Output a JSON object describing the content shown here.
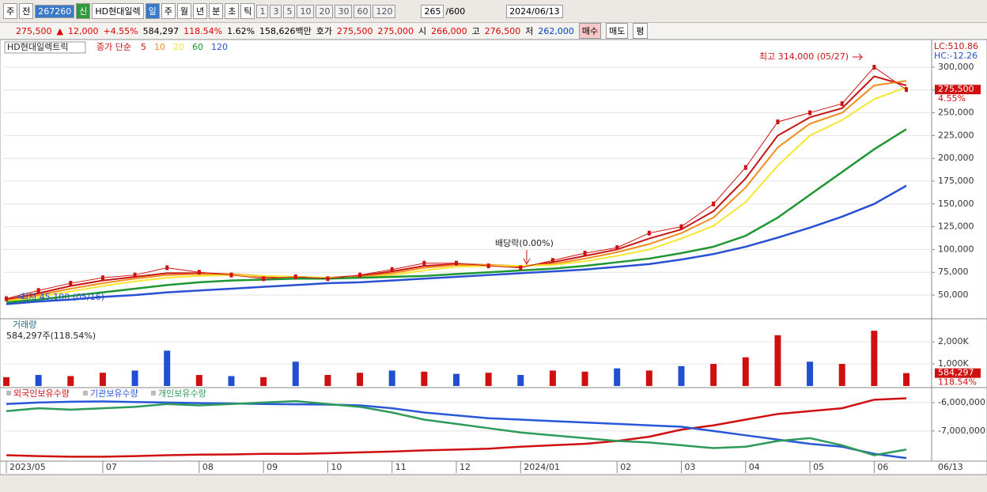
{
  "toolbar": {
    "mode": "주",
    "prev": "전",
    "code": "267260",
    "badge": "신",
    "name": "HD현대일렉",
    "periods": [
      "일",
      "주",
      "월",
      "년",
      "분",
      "초",
      "틱"
    ],
    "intervals": [
      "1",
      "3",
      "5",
      "10",
      "20",
      "30",
      "60",
      "120"
    ],
    "count": "265",
    "max": "/600",
    "date": "2024/06/13"
  },
  "info": {
    "price": "275,500",
    "arrow": "▲",
    "change": "12,000",
    "pct": "+4.55%",
    "volume": "584,297",
    "vol_ratio": "118.54%",
    "turnover": "1.62%",
    "amount": "158,626백만",
    "quote_label": "호가",
    "ask": "275,500",
    "bid": "275,000",
    "open_label": "시",
    "open": "266,000",
    "high_label": "고",
    "high": "276,500",
    "low_label": "저",
    "low": "262,000",
    "buy": "매수",
    "sell": "매도",
    "avg": "평"
  },
  "chart_data": [
    {
      "type": "line",
      "title": "HD현대일렉트릭",
      "ma_label": "종가 단순",
      "categories": [
        "2023/05",
        null,
        null,
        "07",
        null,
        null,
        "08",
        null,
        "09",
        null,
        "10",
        null,
        "11",
        null,
        "12",
        null,
        "2024/01",
        null,
        null,
        "02",
        null,
        "03",
        null,
        "04",
        null,
        "05",
        null,
        "06",
        null
      ],
      "price": {
        "color": "#d01010",
        "values": [
          46000,
          55000,
          63000,
          69000,
          72000,
          80000,
          75000,
          72000,
          68000,
          70000,
          68000,
          72000,
          78000,
          85000,
          85000,
          82000,
          80000,
          88000,
          96000,
          102000,
          118000,
          125000,
          150000,
          190000,
          240000,
          250000,
          260000,
          300000,
          275500
        ]
      },
      "series": [
        {
          "name": "5",
          "color": "#c81414",
          "values": [
            45000,
            52000,
            60000,
            66000,
            70000,
            74000,
            74000,
            73000,
            70000,
            70000,
            69000,
            71000,
            76000,
            82000,
            84000,
            83000,
            81000,
            86000,
            93000,
            100000,
            112000,
            122000,
            142000,
            178000,
            225000,
            245000,
            255000,
            290000,
            280000
          ]
        },
        {
          "name": "10",
          "color": "#f08c1e",
          "values": [
            44000,
            50000,
            57000,
            63000,
            68000,
            72000,
            73000,
            73000,
            71000,
            70000,
            69000,
            70000,
            74000,
            80000,
            83000,
            83000,
            82000,
            84000,
            90000,
            97000,
            106000,
            118000,
            135000,
            168000,
            212000,
            238000,
            250000,
            280000,
            285000
          ]
        },
        {
          "name": "20",
          "color": "#f5e632",
          "values": [
            43000,
            48000,
            54000,
            60000,
            65000,
            69000,
            71000,
            72000,
            71000,
            70000,
            69000,
            69000,
            72000,
            77000,
            81000,
            82000,
            82000,
            83000,
            87000,
            93000,
            100000,
            112000,
            126000,
            152000,
            192000,
            225000,
            242000,
            265000,
            278000
          ]
        },
        {
          "name": "60",
          "color": "#1e9632",
          "values": [
            42000,
            45000,
            49000,
            53000,
            57000,
            61000,
            64000,
            66000,
            67000,
            68000,
            68000,
            69000,
            70000,
            71000,
            73000,
            75000,
            77000,
            79000,
            82000,
            86000,
            90000,
            96000,
            103000,
            115000,
            135000,
            160000,
            185000,
            210000,
            232000
          ]
        },
        {
          "name": "120",
          "color": "#2850d2",
          "values": [
            40000,
            43000,
            45000,
            48000,
            50000,
            53000,
            55000,
            57000,
            59000,
            61000,
            63000,
            64000,
            66000,
            68000,
            70000,
            72000,
            74000,
            76000,
            78000,
            81000,
            84000,
            89000,
            95000,
            103000,
            113000,
            124000,
            136000,
            150000,
            170000
          ]
        }
      ],
      "ylim": [
        24000,
        326000
      ],
      "yticks": [
        {
          "value": 50000,
          "label": "50,000"
        },
        {
          "value": 75000,
          "label": "75,000"
        },
        {
          "value": 100000,
          "label": "100,000"
        },
        {
          "value": 125000,
          "label": "125,000"
        },
        {
          "value": 150000,
          "label": "150,000"
        },
        {
          "value": 175000,
          "label": "175,000"
        },
        {
          "value": 200000,
          "label": "200,000"
        },
        {
          "value": 225000,
          "label": "225,000"
        },
        {
          "value": 250000,
          "label": "250,000"
        },
        {
          "value": 275000,
          "label": "275,000"
        },
        {
          "value": 300000,
          "label": "300,000"
        }
      ],
      "grid": true,
      "annotations": [
        "최고 314,000 (05/27)",
        "배당락(0.00%)",
        "최저 45,100 (05/16)"
      ],
      "lc": "LC:510.86",
      "hc": "HC:-12.26",
      "last_label": "275,500",
      "last_pct": "4.55%",
      "last_date": "06/13"
    },
    {
      "type": "bar",
      "title": "거래량",
      "subtitle": "584,297주(118.54%)",
      "values": [
        400000,
        500000,
        450000,
        600000,
        700000,
        1600000,
        500000,
        450000,
        400000,
        1100000,
        500000,
        600000,
        700000,
        650000,
        550000,
        600000,
        500000,
        700000,
        650000,
        800000,
        700000,
        900000,
        1000000,
        1300000,
        2300000,
        1100000,
        1000000,
        2500000,
        584297
      ],
      "colors": [
        "#d01010",
        "#2050d0",
        "#d01010",
        "#d01010",
        "#2050d0",
        "#2050d0",
        "#d01010",
        "#2050d0",
        "#d01010",
        "#2050d0",
        "#d01010",
        "#d01010",
        "#2050d0",
        "#d01010",
        "#2050d0",
        "#d01010",
        "#2050d0",
        "#d01010",
        "#d01010",
        "#2050d0",
        "#d01010",
        "#2050d0",
        "#d01010",
        "#d01010",
        "#d01010",
        "#2050d0",
        "#d01010",
        "#d01010",
        "#d01010"
      ],
      "ylim": [
        0,
        2900000
      ],
      "yticks": [
        {
          "value": 1000000,
          "label": "1,000K"
        },
        {
          "value": 2000000,
          "label": "2,000K"
        }
      ],
      "grid": true,
      "last_label": "584,297",
      "last_pct": "118.54%"
    },
    {
      "type": "line",
      "series": [
        {
          "name": "외국인보유수량",
          "color": "#d01010",
          "values": [
            -7850000,
            -7880000,
            -7900000,
            -7900000,
            -7880000,
            -7850000,
            -7830000,
            -7820000,
            -7800000,
            -7800000,
            -7780000,
            -7750000,
            -7720000,
            -7680000,
            -7650000,
            -7620000,
            -7550000,
            -7500000,
            -7450000,
            -7350000,
            -7200000,
            -6950000,
            -6800000,
            -6600000,
            -6400000,
            -6300000,
            -6200000,
            -5900000,
            -5850000
          ]
        },
        {
          "name": "기관보유수량",
          "color": "#2858d8",
          "values": [
            -6050000,
            -6000000,
            -5970000,
            -5960000,
            -5980000,
            -6000000,
            -6020000,
            -6030000,
            -6050000,
            -6060000,
            -6070000,
            -6100000,
            -6200000,
            -6350000,
            -6450000,
            -6550000,
            -6600000,
            -6650000,
            -6700000,
            -6750000,
            -6800000,
            -6850000,
            -7000000,
            -7150000,
            -7300000,
            -7450000,
            -7550000,
            -7800000,
            -7950000
          ]
        },
        {
          "name": "개인보유수량",
          "color": "#2e9a5a",
          "values": [
            -6300000,
            -6200000,
            -6250000,
            -6200000,
            -6150000,
            -6050000,
            -6100000,
            -6050000,
            -6000000,
            -5950000,
            -6050000,
            -6150000,
            -6350000,
            -6600000,
            -6750000,
            -6900000,
            -7050000,
            -7150000,
            -7250000,
            -7350000,
            -7400000,
            -7500000,
            -7600000,
            -7550000,
            -7350000,
            -7250000,
            -7500000,
            -7850000,
            -7650000
          ]
        }
      ],
      "ylim": [
        -8030000,
        -5530000
      ],
      "yticks": [
        {
          "value": -7000000,
          "label": "-7,000,000"
        },
        {
          "value": -6000000,
          "label": "-6,000,000"
        }
      ],
      "grid": true
    }
  ]
}
